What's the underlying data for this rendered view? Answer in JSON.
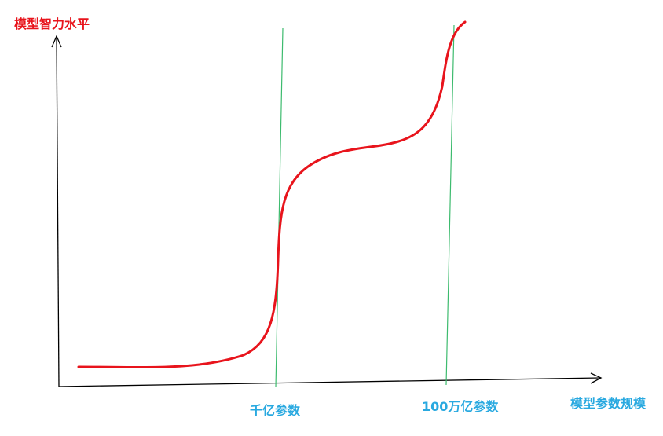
{
  "labels": {
    "y_axis": "模型智力水平",
    "x_axis": "模型参数规模",
    "marker_1": "千亿参数",
    "marker_2": "100万亿参数"
  },
  "colors": {
    "curve": "#e8141c",
    "y_axis_label": "#e8141c",
    "blue_labels": "#29a9e0",
    "marker_lines": "#3dbb6e",
    "axes": "#000000"
  }
}
